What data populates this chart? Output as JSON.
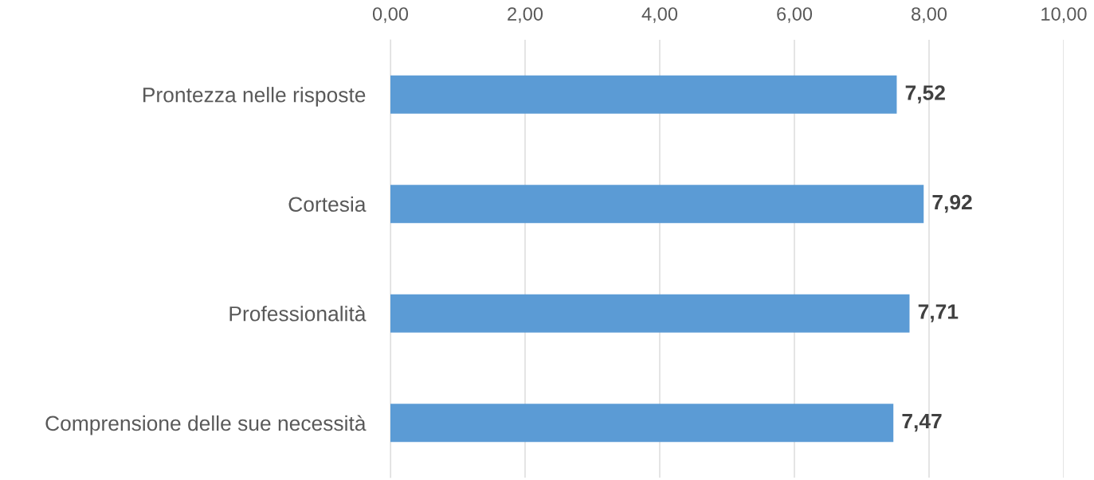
{
  "chart_data": {
    "type": "bar",
    "orientation": "horizontal",
    "categories": [
      "Prontezza nelle risposte",
      "Cortesia",
      "Professionalità",
      "Comprensione delle sue necessità"
    ],
    "values": [
      7.52,
      7.92,
      7.71,
      7.47
    ],
    "value_labels": [
      "7,52",
      "7,92",
      "7,71",
      "7,47"
    ],
    "color": "#5b9bd5",
    "xlim": [
      0,
      10
    ],
    "xticks": [
      {
        "value": 0,
        "label": "0,00"
      },
      {
        "value": 2,
        "label": "2,00"
      },
      {
        "value": 4,
        "label": "4,00"
      },
      {
        "value": 6,
        "label": "6,00"
      },
      {
        "value": 8,
        "label": "8,00"
      },
      {
        "value": 10,
        "label": "10,00"
      }
    ],
    "grid": "x",
    "legend": false
  }
}
